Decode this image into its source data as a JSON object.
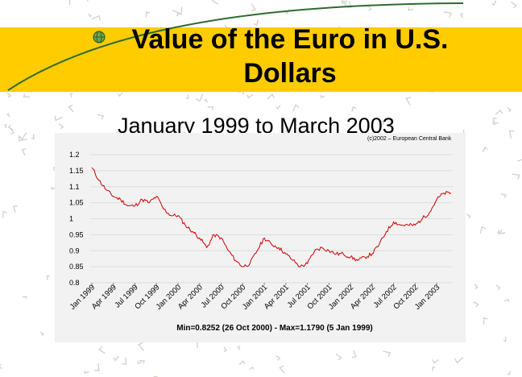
{
  "slide": {
    "title": "Value of the Euro in U.S. Dollars",
    "subtitle": "January 1999 to March 2003",
    "colors": {
      "band": "#ffcc00",
      "line": "#cc0000",
      "panel": "#f2f2f2"
    }
  },
  "chart_data": {
    "type": "line",
    "credit": "(c)2002 – European Central Bank",
    "annotation": "Min=0.8252 (26 Oct 2000) - Max=1.1790 (5 Jan 1999)",
    "xlabel": "",
    "ylabel": "",
    "ylim": [
      0.8,
      1.2
    ],
    "yticks": [
      1.2,
      1.15,
      1.1,
      1.05,
      1,
      0.95,
      0.9,
      0.85,
      0.8
    ],
    "ytick_labels": [
      "1.2",
      "1.15",
      "1.1",
      "1.05",
      "1",
      "0.95",
      "0.9",
      "0.85",
      "0.8"
    ],
    "xtick_labels": [
      "Jan 1999",
      "Apr 1999",
      "Jul 1999",
      "Oct 1999",
      "Jan 2000",
      "Apr 2000",
      "Jul 2000",
      "Oct 2000",
      "Jan 2001",
      "Apr 2001",
      "Jul 2001",
      "Oct 2001",
      "Jan 2002",
      "Apr 2002",
      "Jul 2002",
      "Oct 2002",
      "Jan 2003"
    ],
    "grid": "horizontal",
    "series": [
      {
        "months": [
          "Jan 1999",
          "Feb 1999",
          "Mar 1999",
          "Apr 1999",
          "May 1999",
          "Jun 1999",
          "Jul 1999",
          "Aug 1999",
          "Sep 1999",
          "Oct 1999",
          "Nov 1999",
          "Dec 1999",
          "Jan 2000",
          "Feb 2000",
          "Mar 2000",
          "Apr 2000",
          "May 2000",
          "Jun 2000",
          "Jul 2000",
          "Aug 2000",
          "Sep 2000",
          "Oct 2000",
          "Nov 2000",
          "Dec 2000",
          "Jan 2001",
          "Feb 2001",
          "Mar 2001",
          "Apr 2001",
          "May 2001",
          "Jun 2001",
          "Jul 2001",
          "Aug 2001",
          "Sep 2001",
          "Oct 2001",
          "Nov 2001",
          "Dec 2001",
          "Jan 2002",
          "Feb 2002",
          "Mar 2002",
          "Apr 2002",
          "May 2002",
          "Jun 2002",
          "Jul 2002",
          "Aug 2002",
          "Sep 2002",
          "Oct 2002",
          "Nov 2002",
          "Dec 2002",
          "Jan 2003",
          "Feb 2003",
          "Mar 2003"
        ],
        "values": [
          1.16,
          1.12,
          1.09,
          1.07,
          1.06,
          1.04,
          1.04,
          1.06,
          1.05,
          1.07,
          1.03,
          1.01,
          1.01,
          0.98,
          0.96,
          0.94,
          0.91,
          0.95,
          0.94,
          0.9,
          0.87,
          0.85,
          0.86,
          0.9,
          0.94,
          0.92,
          0.91,
          0.89,
          0.87,
          0.85,
          0.86,
          0.9,
          0.91,
          0.9,
          0.89,
          0.89,
          0.88,
          0.87,
          0.88,
          0.89,
          0.92,
          0.96,
          0.99,
          0.98,
          0.98,
          0.98,
          1.0,
          1.02,
          1.06,
          1.08,
          1.08
        ]
      }
    ]
  }
}
